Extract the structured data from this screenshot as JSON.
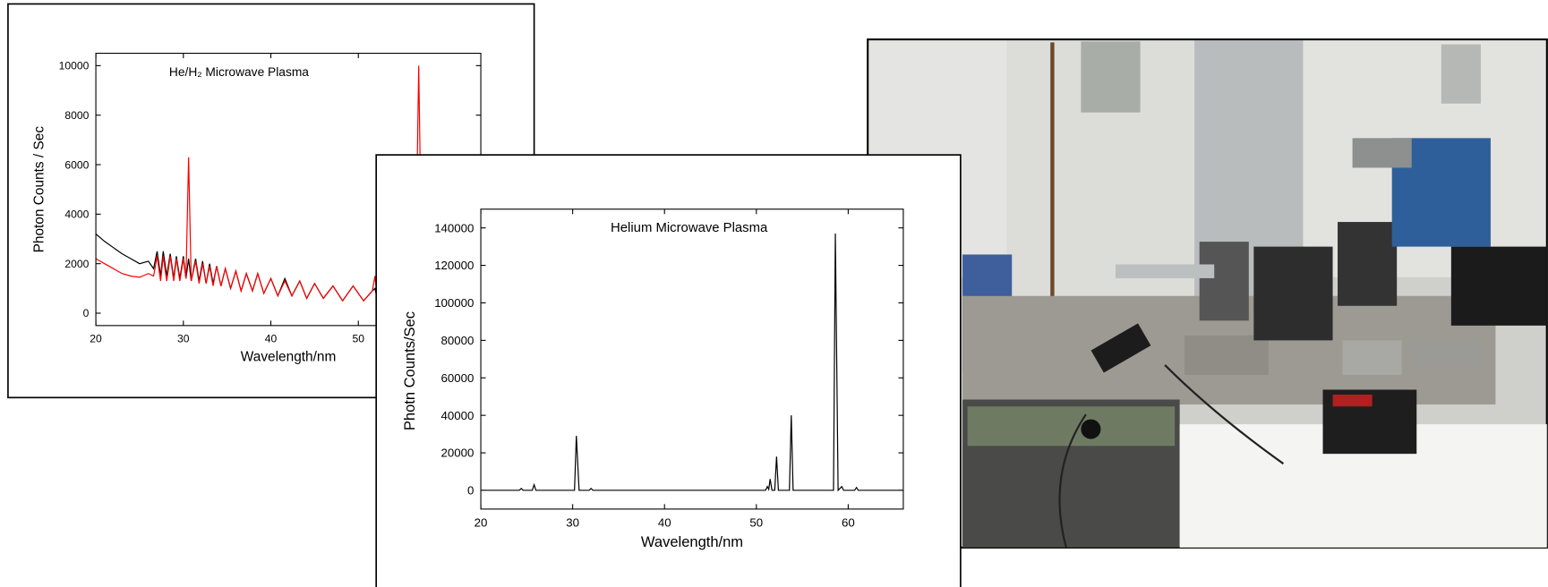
{
  "chart_data": [
    {
      "type": "line",
      "title": "He/H₂ Microwave Plasma",
      "x_label": "Wavelength/nm",
      "y_label": "Photon Counts / Sec",
      "x": [
        20,
        21,
        22,
        23,
        24,
        25,
        26,
        26.6,
        27.0,
        27.4,
        27.7,
        28.1,
        28.5,
        28.9,
        29.2,
        29.6,
        30.0,
        30.3,
        30.6,
        30.9,
        31.4,
        31.8,
        32.2,
        32.6,
        33.0,
        33.4,
        33.8,
        34.3,
        34.8,
        35.4,
        36.0,
        36.6,
        37.2,
        37.9,
        38.5,
        39.2,
        40.0,
        40.8,
        41.6,
        42.4,
        43.3,
        44.1,
        45.0,
        46.0,
        47.1,
        48.2,
        49.4,
        50.6,
        51.6,
        51.9,
        52.2,
        52.5,
        52.8,
        54,
        55,
        56.5,
        56.9,
        57.3,
        59,
        61,
        64
      ],
      "series": [
        {
          "color": "#000000",
          "values": [
            3200,
            2900,
            2650,
            2400,
            2200,
            2000,
            2100,
            1800,
            2500,
            1500,
            2500,
            1500,
            2400,
            1400,
            2300,
            1400,
            2300,
            1400,
            2200,
            1300,
            2200,
            1300,
            2100,
            1200,
            2000,
            1200,
            1900,
            1100,
            1800,
            1000,
            1700,
            900,
            1600,
            900,
            1600,
            800,
            1400,
            700,
            1400,
            700,
            1300,
            600,
            1200,
            600,
            1100,
            500,
            1100,
            500,
            900,
            1000,
            500,
            700,
            500,
            600,
            600,
            500,
            600,
            500,
            500,
            400,
            400
          ]
        },
        {
          "color": "#ff0000",
          "values": [
            2200,
            2000,
            1800,
            1600,
            1500,
            1450,
            1600,
            1500,
            2300,
            1300,
            2300,
            1300,
            2300,
            1300,
            2200,
            1300,
            2200,
            1400,
            6300,
            1300,
            2100,
            1200,
            2000,
            1200,
            1900,
            1100,
            1900,
            1100,
            1800,
            1000,
            1700,
            900,
            1600,
            900,
            1600,
            800,
            1400,
            700,
            1300,
            700,
            1300,
            600,
            1200,
            600,
            1100,
            500,
            1100,
            500,
            900,
            1500,
            500,
            2300,
            500,
            600,
            600,
            500,
            10000,
            500,
            500,
            400,
            400
          ]
        }
      ],
      "xlim": [
        20,
        64
      ],
      "xticks": [
        20,
        30,
        40,
        50
      ],
      "ylim": [
        -500,
        10500
      ],
      "yticks": [
        0,
        2000,
        4000,
        6000,
        8000,
        10000
      ]
    },
    {
      "type": "line",
      "title": "Helium Microwave Plasma",
      "x_label": "Wavelength/nm",
      "y_label": "Photn Counts/Sec",
      "x": [
        20,
        24.2,
        24.4,
        24.6,
        25.6,
        25.8,
        26.0,
        30.2,
        30.4,
        30.7,
        31.8,
        32.0,
        32.2,
        51.0,
        51.2,
        51.35,
        51.5,
        51.7,
        52.0,
        52.2,
        52.4,
        53.6,
        53.8,
        54.0,
        58.4,
        58.6,
        58.9,
        59.3,
        59.5,
        60.7,
        60.9,
        61.1,
        66
      ],
      "series": [
        {
          "color": "#000000",
          "values": [
            0,
            0,
            1000,
            0,
            0,
            3000,
            0,
            0,
            29000,
            0,
            0,
            1000,
            0,
            0,
            2000,
            500,
            6000,
            0,
            0,
            18000,
            0,
            0,
            40000,
            0,
            0,
            137000,
            0,
            2000,
            0,
            0,
            1500,
            0,
            0
          ]
        }
      ],
      "xlim": [
        20,
        66
      ],
      "xticks": [
        20,
        30,
        40,
        50,
        60
      ],
      "ylim": [
        -10000,
        150000
      ],
      "yticks": [
        0,
        20000,
        40000,
        60000,
        80000,
        100000,
        120000,
        140000
      ]
    }
  ]
}
